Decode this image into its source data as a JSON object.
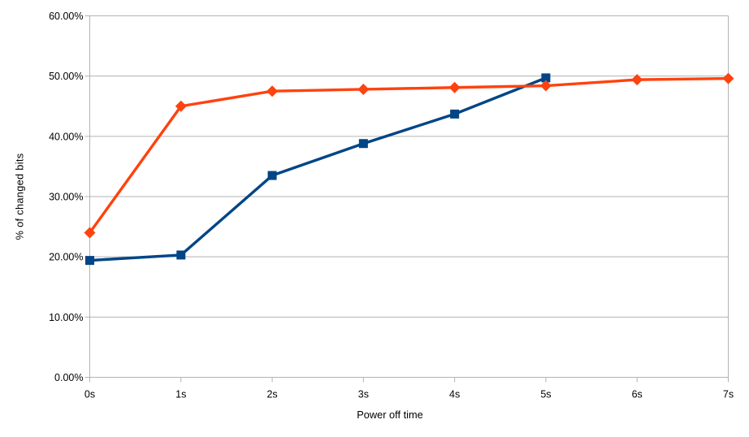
{
  "chart_data": {
    "type": "line",
    "title": "",
    "xlabel": "Power off time",
    "ylabel": "% of changed bits",
    "categories": [
      "0s",
      "1s",
      "2s",
      "3s",
      "4s",
      "5s",
      "6s",
      "7s"
    ],
    "y_ticks": [
      0,
      10,
      20,
      30,
      40,
      50,
      60
    ],
    "y_tick_labels": [
      "0.00%",
      "10.00%",
      "20.00%",
      "30.00%",
      "40.00%",
      "50.00%",
      "60.00%"
    ],
    "ylim": [
      0,
      60
    ],
    "grid": "horizontal",
    "legend": "none",
    "colors": {
      "background": "#ffffff",
      "gridline": "#b3b3b3",
      "axis": "#b3b3b3",
      "text": "#000000",
      "series1": "#004586",
      "series2": "#ff420e"
    },
    "series": [
      {
        "marker": "square",
        "color": "#004586",
        "values": [
          19.4,
          20.3,
          33.5,
          38.8,
          43.7,
          49.7
        ]
      },
      {
        "marker": "diamond",
        "color": "#ff420e",
        "values": [
          24.0,
          45.0,
          47.5,
          47.8,
          48.1,
          48.4,
          49.4,
          49.6
        ]
      }
    ]
  }
}
